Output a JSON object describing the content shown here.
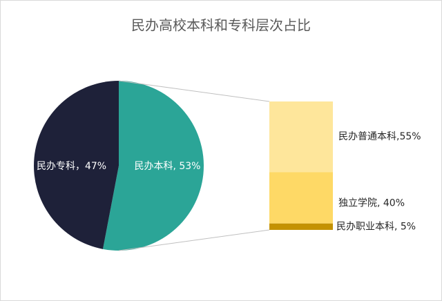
{
  "chart_data": {
    "type": "pie",
    "title": "民办高校本科和专科层次占比",
    "categories": [
      "民办本科",
      "民办专科"
    ],
    "values": [
      53,
      47
    ],
    "value_labels": [
      "民办本科, 53%",
      "民办专科，47%"
    ],
    "colors": [
      "#2ba597",
      "#1e2139"
    ],
    "breakdown": {
      "categories": [
        "民办普通本科",
        "独立学院",
        "民办职业本科"
      ],
      "values": [
        55,
        40,
        5
      ],
      "value_labels": [
        "民办普通本科,55%",
        "独立学院, 40%",
        "民办职业本科, 5%"
      ],
      "colors": [
        "#fee69b",
        "#fed966",
        "#c49202"
      ]
    }
  }
}
